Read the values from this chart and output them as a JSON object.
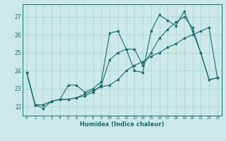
{
  "title": "",
  "xlabel": "Humidex (Indice chaleur)",
  "xlim": [
    -0.5,
    23.5
  ],
  "ylim": [
    21.5,
    27.7
  ],
  "yticks": [
    22,
    23,
    24,
    25,
    26,
    27
  ],
  "xticks": [
    0,
    1,
    2,
    3,
    4,
    5,
    6,
    7,
    8,
    9,
    10,
    11,
    12,
    13,
    14,
    15,
    16,
    17,
    18,
    19,
    20,
    21,
    22,
    23
  ],
  "bg_color": "#cce8e8",
  "grid_color": "#aad4d4",
  "line_color": "#1a6e6e",
  "curves": [
    [
      23.9,
      22.1,
      21.9,
      22.3,
      22.4,
      23.2,
      23.2,
      22.8,
      23.0,
      23.4,
      26.1,
      26.2,
      25.2,
      24.0,
      23.9,
      26.2,
      27.1,
      26.8,
      26.5,
      27.3,
      26.2,
      25.0,
      23.5,
      23.6
    ],
    [
      23.9,
      22.1,
      22.1,
      22.3,
      22.4,
      22.4,
      22.5,
      22.7,
      22.9,
      23.1,
      23.2,
      23.5,
      24.0,
      24.3,
      24.5,
      24.8,
      25.0,
      25.3,
      25.5,
      25.8,
      26.0,
      26.2,
      26.4,
      23.6
    ],
    [
      23.9,
      22.1,
      22.1,
      22.3,
      22.4,
      22.4,
      22.5,
      22.6,
      22.8,
      23.2,
      24.6,
      25.0,
      25.2,
      25.2,
      24.3,
      25.0,
      25.8,
      26.3,
      26.7,
      27.0,
      26.4,
      25.0,
      23.5,
      23.6
    ]
  ]
}
